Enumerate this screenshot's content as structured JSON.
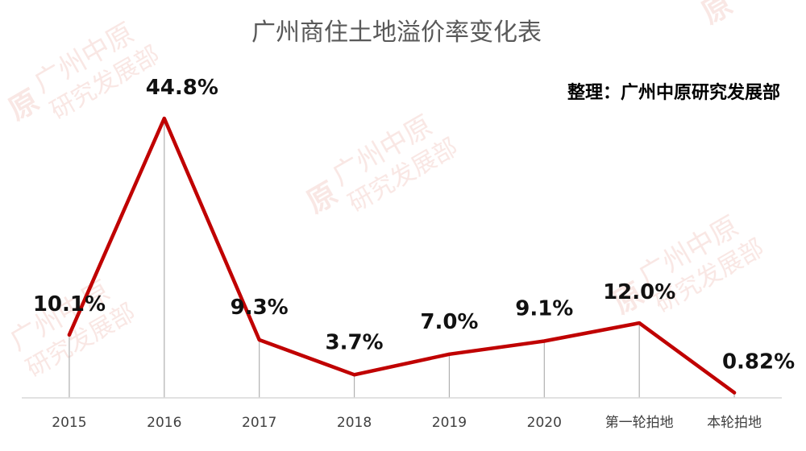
{
  "watermark": {
    "name_line": "广州中原",
    "dept_line": "研究发展部",
    "logo_char": "原"
  },
  "chart_data": {
    "type": "line",
    "title": "广州商住土地溢价率变化表",
    "source_note": "整理：广州中原研究发展部",
    "categories": [
      "2015",
      "2016",
      "2017",
      "2018",
      "2019",
      "2020",
      "第一轮拍地",
      "本轮拍地"
    ],
    "series": [
      {
        "values": [
          10.1,
          44.8,
          9.3,
          3.7,
          7.0,
          9.1,
          12.0,
          0.82
        ],
        "labels": [
          "10.1%",
          "44.8%",
          "9.3%",
          "3.7%",
          "7.0%",
          "9.1%",
          "12.0%",
          "0.82%"
        ],
        "color": "#c00000"
      }
    ],
    "ylim": [
      0,
      47
    ],
    "grid": false,
    "legend": "none",
    "drop_lines": true
  }
}
